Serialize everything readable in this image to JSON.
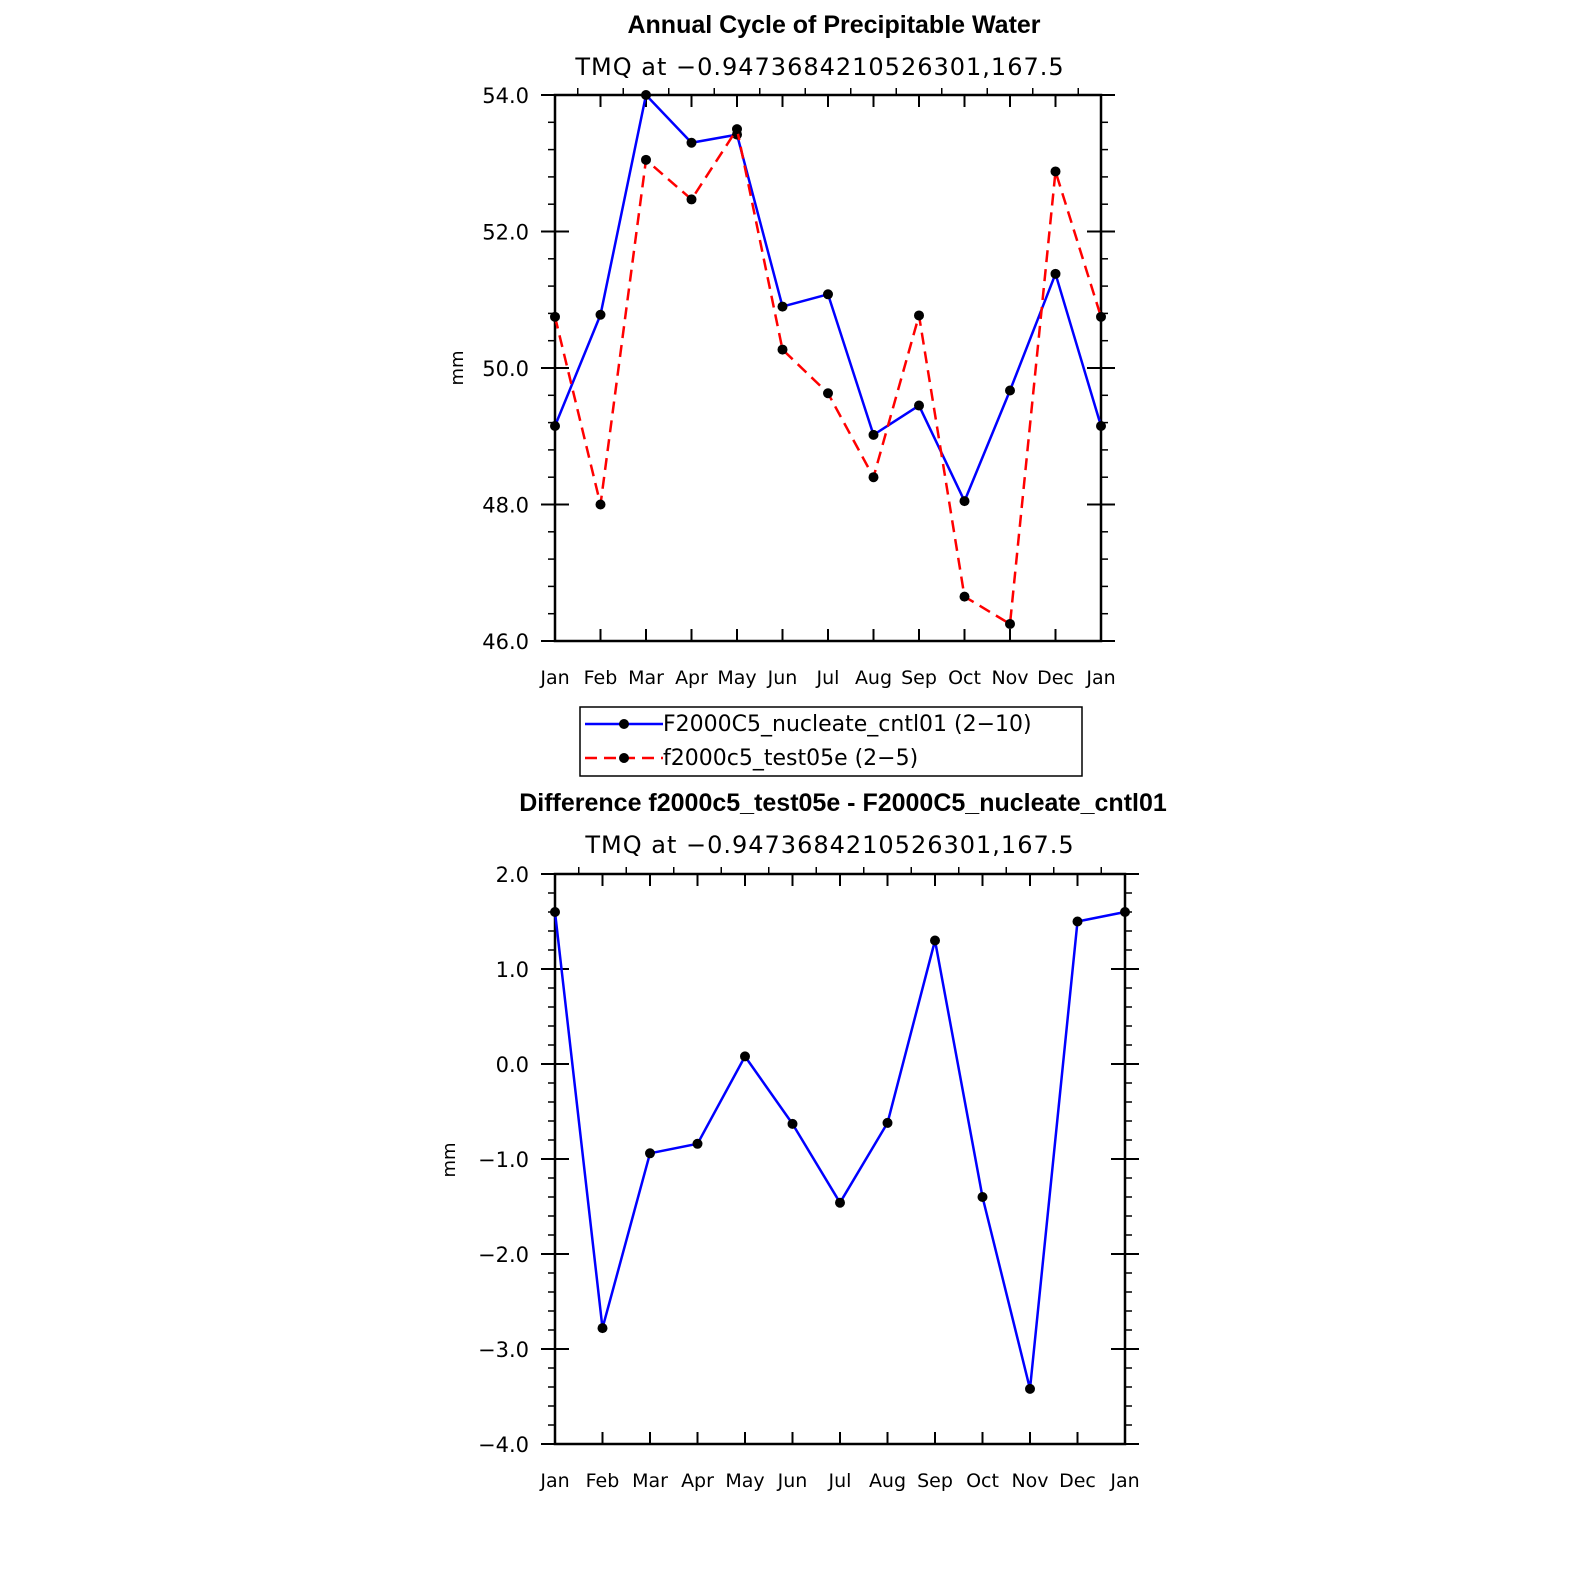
{
  "chart_data": [
    {
      "type": "line",
      "title": "Annual Cycle of Precipitable Water",
      "subtitle": "TMQ at −0.9473684210526301,167.5",
      "xlabel": "",
      "ylabel": "mm",
      "categories": [
        "Jan",
        "Feb",
        "Mar",
        "Apr",
        "May",
        "Jun",
        "Jul",
        "Aug",
        "Sep",
        "Oct",
        "Nov",
        "Dec",
        "Jan"
      ],
      "ylim": [
        46.0,
        54.0
      ],
      "yticks": [
        46.0,
        48.0,
        50.0,
        52.0,
        54.0
      ],
      "ytick_labels": [
        "46.0",
        "48.0",
        "50.0",
        "52.0",
        "54.0"
      ],
      "grid": false,
      "legend_position": "bottom",
      "series": [
        {
          "name": "F2000C5_nucleate_cntl01 (2−10)",
          "color": "#0000ff",
          "dashed": false,
          "values": [
            49.15,
            50.78,
            54.0,
            53.3,
            53.42,
            50.9,
            51.08,
            49.02,
            49.45,
            48.05,
            49.67,
            51.38,
            49.15
          ]
        },
        {
          "name": "f2000c5_test05e (2−5)",
          "color": "#ff0000",
          "dashed": true,
          "values": [
            50.75,
            48.0,
            53.05,
            52.47,
            53.5,
            50.27,
            49.63,
            48.4,
            50.77,
            46.65,
            46.25,
            52.88,
            50.75
          ]
        }
      ]
    },
    {
      "type": "line",
      "title": "Difference f2000c5_test05e - F2000C5_nucleate_cntl01",
      "subtitle": "TMQ at −0.9473684210526301,167.5",
      "xlabel": "",
      "ylabel": "mm",
      "categories": [
        "Jan",
        "Feb",
        "Mar",
        "Apr",
        "May",
        "Jun",
        "Jul",
        "Aug",
        "Sep",
        "Oct",
        "Nov",
        "Dec",
        "Jan"
      ],
      "ylim": [
        -4.0,
        2.0
      ],
      "yticks": [
        -4.0,
        -3.0,
        -2.0,
        -1.0,
        0.0,
        1.0,
        2.0
      ],
      "ytick_labels": [
        "−4.0",
        "−3.0",
        "−2.0",
        "−1.0",
        "0.0",
        "1.0",
        "2.0"
      ],
      "grid": false,
      "series": [
        {
          "color": "#0000ff",
          "dashed": false,
          "values": [
            1.6,
            -2.78,
            -0.94,
            -0.84,
            0.08,
            -0.63,
            -1.46,
            -0.62,
            1.3,
            -1.4,
            -3.42,
            1.5,
            1.6
          ]
        }
      ]
    }
  ]
}
